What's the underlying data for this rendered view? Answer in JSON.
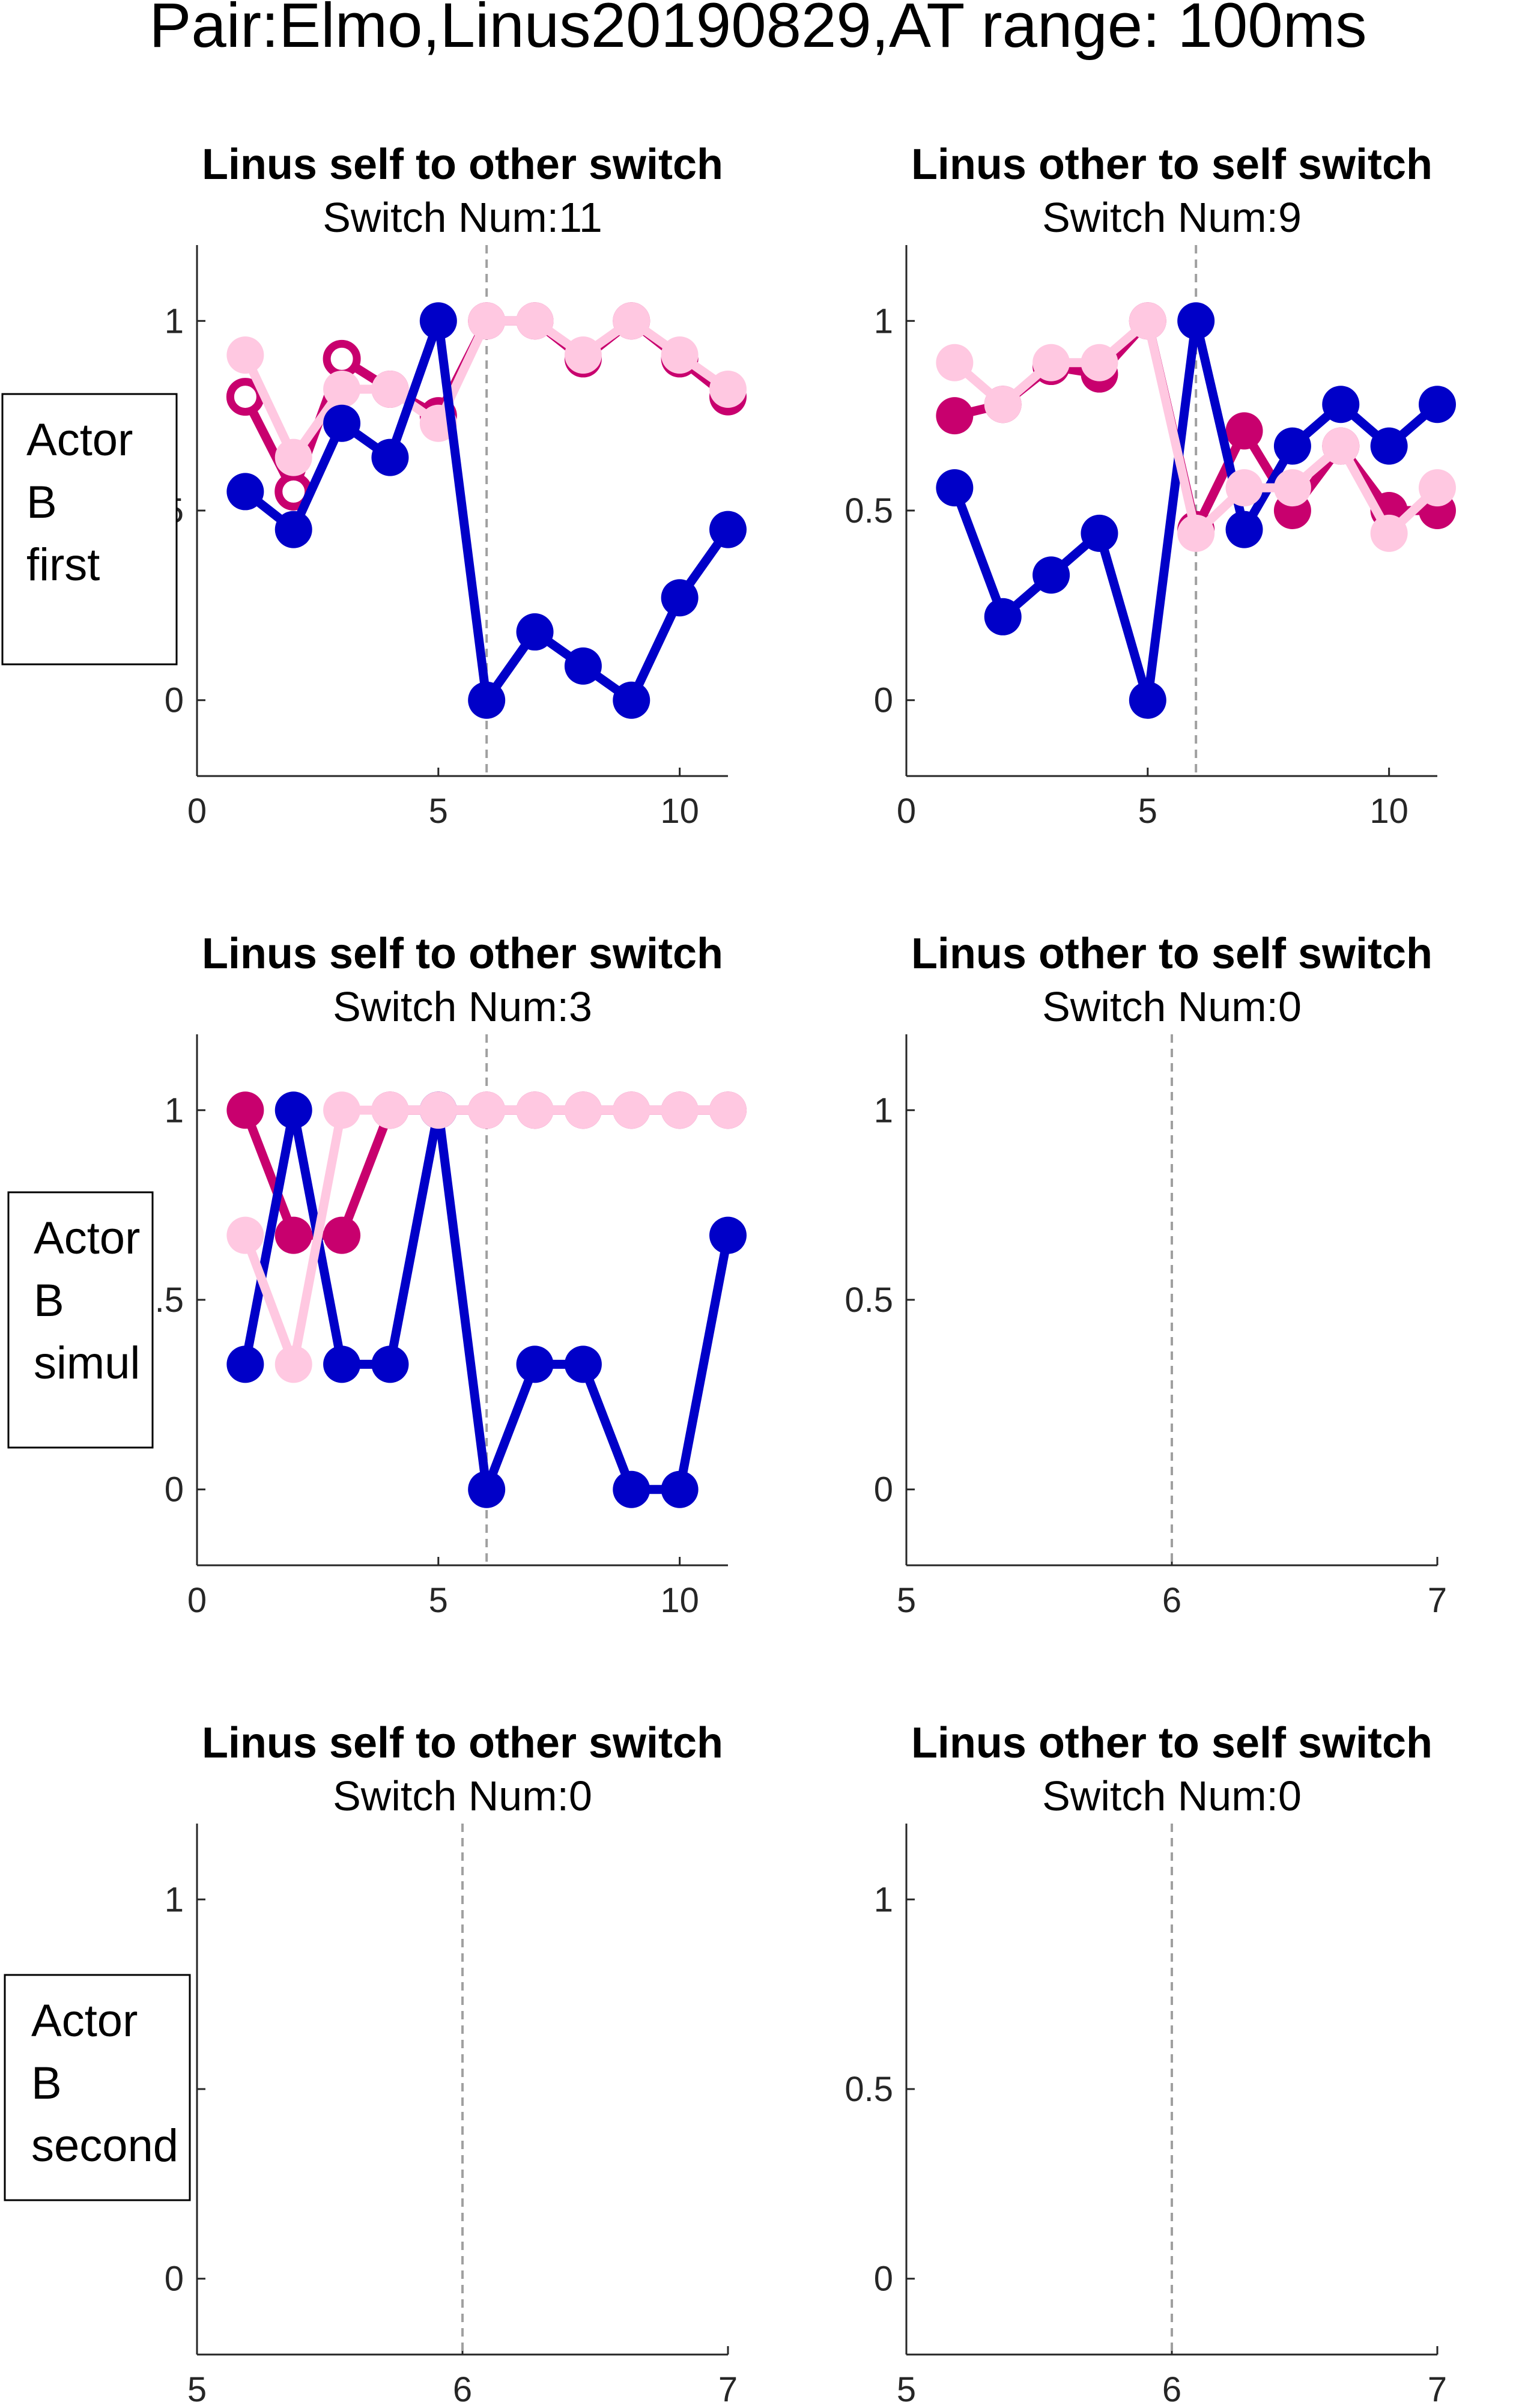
{
  "figure_title": "Pair:Elmo,Linus20190829,AT range: 100ms",
  "colors": {
    "blue": "#0000c8",
    "magenta": "#c8006e",
    "pink": "#ffc8e1",
    "guide": "#a0a0a0",
    "axis": "#262626"
  },
  "row_labels": [
    {
      "lines": [
        "Actor",
        "B",
        "first"
      ]
    },
    {
      "lines": [
        "Actor",
        "B",
        "simul"
      ]
    },
    {
      "lines": [
        "Actor",
        "B",
        "second"
      ]
    }
  ],
  "chart_data": [
    {
      "type": "line",
      "title": "Linus self to other switch",
      "subtitle": "Switch Num:11",
      "xlim": [
        0,
        11
      ],
      "ylim": [
        -0.2,
        1.2
      ],
      "xticks": [
        "0",
        "5",
        "10"
      ],
      "xtick_values": [
        0,
        5,
        10
      ],
      "yticks": [
        "0",
        "0.5",
        "1"
      ],
      "ytick_values": [
        0,
        0.5,
        1
      ],
      "vline": 6,
      "x": [
        1,
        2,
        3,
        4,
        5,
        6,
        7,
        8,
        9,
        10,
        11
      ],
      "series": [
        {
          "color": "#c8006e",
          "hollow": [
            true,
            true,
            true,
            false,
            false,
            false,
            false,
            false,
            false,
            false,
            false
          ],
          "values": [
            0.8,
            0.55,
            0.9,
            0.82,
            0.75,
            1.0,
            1.0,
            0.9,
            1.0,
            0.9,
            0.8
          ]
        },
        {
          "color": "#ffc8e1",
          "hollow": [],
          "values": [
            0.91,
            0.64,
            0.82,
            0.82,
            0.73,
            1.0,
            1.0,
            0.91,
            1.0,
            0.91,
            0.82
          ]
        },
        {
          "color": "#0000c8",
          "hollow": [],
          "values": [
            0.55,
            0.45,
            0.73,
            0.64,
            1.0,
            0.0,
            0.18,
            0.09,
            0.0,
            0.27,
            0.45
          ]
        }
      ]
    },
    {
      "type": "line",
      "title": "Linus other to self switch",
      "subtitle": "Switch Num:9",
      "xlim": [
        0,
        11
      ],
      "ylim": [
        -0.2,
        1.2
      ],
      "xticks": [
        "0",
        "5",
        "10"
      ],
      "xtick_values": [
        0,
        5,
        10
      ],
      "yticks": [
        "0",
        "0.5",
        "1"
      ],
      "ytick_values": [
        0,
        0.5,
        1
      ],
      "vline": 6,
      "x": [
        1,
        2,
        3,
        4,
        5,
        6,
        7,
        8,
        9,
        10,
        11
      ],
      "series": [
        {
          "color": "#c8006e",
          "hollow": [],
          "values": [
            0.75,
            0.78,
            0.88,
            0.86,
            1.0,
            0.45,
            0.71,
            0.5,
            0.67,
            0.5,
            0.5
          ]
        },
        {
          "color": "#0000c8",
          "hollow": [],
          "values": [
            0.56,
            0.22,
            0.33,
            0.44,
            0.0,
            1.0,
            0.45,
            0.67,
            0.78,
            0.67,
            0.78
          ]
        },
        {
          "color": "#ffc8e1",
          "hollow": [],
          "values": [
            0.89,
            0.78,
            0.89,
            0.89,
            1.0,
            0.44,
            0.56,
            0.56,
            0.67,
            0.44,
            0.56
          ]
        }
      ]
    },
    {
      "type": "line",
      "title": "Linus self to other switch",
      "subtitle": "Switch Num:3",
      "xlim": [
        0,
        11
      ],
      "ylim": [
        -0.2,
        1.2
      ],
      "xticks": [
        "0",
        "5",
        "10"
      ],
      "xtick_values": [
        0,
        5,
        10
      ],
      "yticks": [
        "0",
        "0.5",
        "1"
      ],
      "ytick_values": [
        0,
        0.5,
        1
      ],
      "vline": 6,
      "x": [
        1,
        2,
        3,
        4,
        5,
        6,
        7,
        8,
        9,
        10,
        11
      ],
      "series": [
        {
          "color": "#c8006e",
          "hollow": [],
          "values": [
            1.0,
            0.67,
            0.67,
            1.0,
            1.0,
            1.0,
            1.0,
            1.0,
            1.0,
            1.0,
            1.0
          ]
        },
        {
          "color": "#0000c8",
          "hollow": [],
          "values": [
            0.33,
            1.0,
            0.33,
            0.33,
            1.0,
            0.0,
            0.33,
            0.33,
            0.0,
            0.0,
            0.67
          ]
        },
        {
          "color": "#ffc8e1",
          "hollow": [],
          "values": [
            0.67,
            0.33,
            1.0,
            1.0,
            1.0,
            1.0,
            1.0,
            1.0,
            1.0,
            1.0,
            1.0
          ]
        }
      ]
    },
    {
      "type": "line",
      "title": "Linus other to self switch",
      "subtitle": "Switch Num:0",
      "xlim": [
        5,
        7
      ],
      "ylim": [
        -0.2,
        1.2
      ],
      "xticks": [
        "5",
        "6",
        "7"
      ],
      "xtick_values": [
        5,
        6,
        7
      ],
      "yticks": [
        "0",
        "0.5",
        "1"
      ],
      "ytick_values": [
        0,
        0.5,
        1
      ],
      "vline": 6,
      "x": [],
      "series": []
    },
    {
      "type": "line",
      "title": "Linus self to other switch",
      "subtitle": "Switch Num:0",
      "xlim": [
        5,
        7
      ],
      "ylim": [
        -0.2,
        1.2
      ],
      "xticks": [
        "5",
        "6",
        "7"
      ],
      "xtick_values": [
        5,
        6,
        7
      ],
      "yticks": [
        "0",
        "0.5",
        "1"
      ],
      "ytick_values": [
        0,
        0.5,
        1
      ],
      "vline": 6,
      "x": [],
      "series": []
    },
    {
      "type": "line",
      "title": "Linus other to self switch",
      "subtitle": "Switch Num:0",
      "xlim": [
        5,
        7
      ],
      "ylim": [
        -0.2,
        1.2
      ],
      "xticks": [
        "5",
        "6",
        "7"
      ],
      "xtick_values": [
        5,
        6,
        7
      ],
      "yticks": [
        "0",
        "0.5",
        "1"
      ],
      "ytick_values": [
        0,
        0.5,
        1
      ],
      "vline": 6,
      "x": [],
      "series": []
    }
  ]
}
